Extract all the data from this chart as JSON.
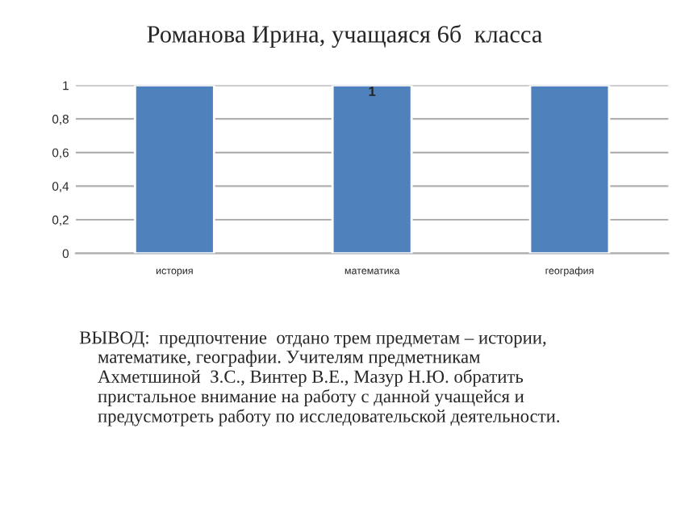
{
  "chart_data": {
    "type": "bar",
    "title": "Романова Ирина, учащаяся 6б  класса",
    "categories": [
      "история",
      "математика",
      "география"
    ],
    "values": [
      1,
      1,
      1
    ],
    "value_labels": [
      null,
      "1",
      null
    ],
    "color": "#4f81bd",
    "ylim": [
      0,
      1
    ],
    "yticks": [
      {
        "value": 0,
        "label": "0"
      },
      {
        "value": 0.2,
        "label": "0,2"
      },
      {
        "value": 0.4,
        "label": "0,4"
      },
      {
        "value": 0.6,
        "label": "0,6"
      },
      {
        "value": 0.8,
        "label": "0,8"
      },
      {
        "value": 1,
        "label": "1"
      }
    ],
    "grid": "y",
    "legend": false,
    "annotations": [
      "ВЫВОД:  предпочтение  отдано трем предметам – истории,\n    математике, географии. Учителям предметникам\n    Ахметшиной  З.С., Винтер В.Е., Мазур Н.Ю. обратить\n    пристальное внимание на работу с данной учащейся и\n    предусмотреть работу по исследовательской деятельности."
    ]
  }
}
